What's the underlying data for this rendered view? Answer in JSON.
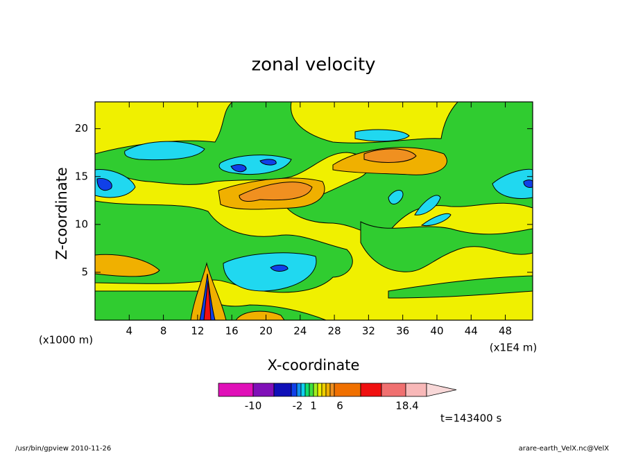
{
  "chart_data": {
    "type": "contour",
    "title": "zonal velocity",
    "x_label": "X-coordinate",
    "y_label": "Z-coordinate",
    "x_unit": "(x1E4 m)",
    "y_unit": "(x1000 m)",
    "xlim": [
      0,
      51.2
    ],
    "xticks": [
      4,
      8,
      12,
      16,
      20,
      24,
      28,
      32,
      36,
      40,
      44,
      48
    ],
    "ylim": [
      0,
      22.8
    ],
    "yticks": [
      5,
      10,
      15,
      20
    ],
    "time_label": "t=143400 s",
    "colorbar": {
      "colors": [
        "#e010b8",
        "#8010b8",
        "#1010b8",
        "#1040e8",
        "#1090f0",
        "#10d0f0",
        "#10e070",
        "#40e040",
        "#a0f020",
        "#f0f000",
        "#f0d000",
        "#f0b000",
        "#f09020",
        "#f07000",
        "#f01010",
        "#f07070",
        "#f8b8b8",
        "#f8d8d8"
      ],
      "ticks": [
        -10,
        -2,
        1,
        6,
        18.4
      ]
    }
  },
  "footer": {
    "left": "/usr/bin/gpview  2010-11-26",
    "right": "arare-earth_VelX.nc@VelX"
  }
}
